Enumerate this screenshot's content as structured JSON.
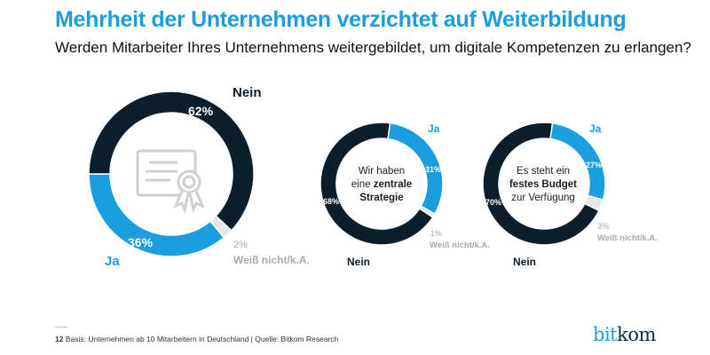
{
  "header": {
    "title": "Mehrheit der Unternehmen verzichtet auf Weiterbildung",
    "subtitle": "Werden Mitarbeiter Ihres Unternehmens weitergebildet, um digitale Kompetenzen zu erlangen?"
  },
  "colors": {
    "ja": "#1a9ee0",
    "nein": "#0b1e2a",
    "unknown": "#e6e6e6",
    "accent": "#1a9ee0"
  },
  "chart_data": [
    {
      "type": "pie",
      "variant": "donut",
      "center_icon": "certificate-icon",
      "center_text": [],
      "slices": [
        {
          "name": "Nein",
          "value": 62,
          "label": "62%"
        },
        {
          "name": "Weiß nicht/k.A.",
          "value": 2,
          "label": "2%"
        },
        {
          "name": "Ja",
          "value": 36,
          "label": "36%"
        }
      ]
    },
    {
      "type": "pie",
      "variant": "donut",
      "center_text": [
        "Wir haben",
        "eine",
        "zentrale",
        "Strategie"
      ],
      "slices": [
        {
          "name": "Ja",
          "value": 31,
          "label": "31%"
        },
        {
          "name": "Weiß nicht/k.A.",
          "value": 1,
          "label": "1%"
        },
        {
          "name": "Nein",
          "value": 68,
          "label": "68%"
        }
      ]
    },
    {
      "type": "pie",
      "variant": "donut",
      "center_text": [
        "Es steht ein",
        "festes Budget",
        "zur Verfügung"
      ],
      "slices": [
        {
          "name": "Ja",
          "value": 27,
          "label": "27%"
        },
        {
          "name": "Weiß nicht/k.A.",
          "value": 3,
          "label": "3%"
        },
        {
          "name": "Nein",
          "value": 70,
          "label": "70%"
        }
      ]
    }
  ],
  "footer": {
    "page": "12",
    "note": "Basis: Unternehmen ab 10 Mitarbeitern in Deutschland | Quelle: Bitkom Research",
    "logo_bit": "bit",
    "logo_kom": "kom"
  }
}
